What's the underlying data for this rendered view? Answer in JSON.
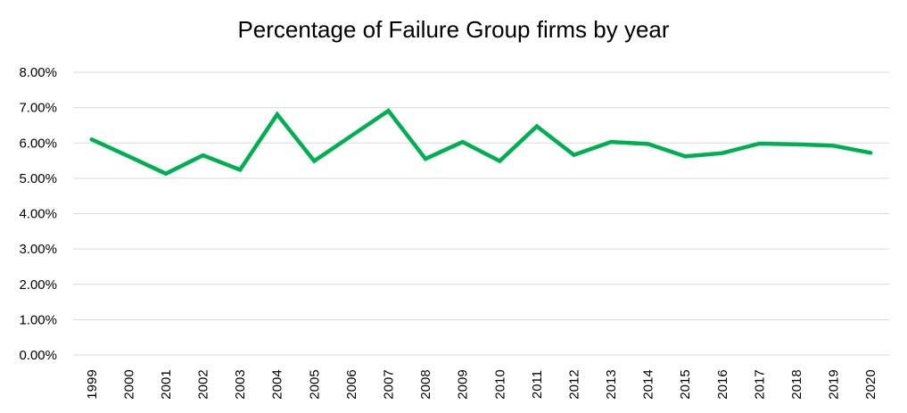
{
  "chart_data": {
    "type": "line",
    "title": "Percentage of Failure Group firms by year",
    "xlabel": "",
    "ylabel": "",
    "categories": [
      "1999",
      "2000",
      "2001",
      "2002",
      "2003",
      "2004",
      "2005",
      "2006",
      "2007",
      "2008",
      "2009",
      "2010",
      "2011",
      "2012",
      "2013",
      "2014",
      "2015",
      "2016",
      "2017",
      "2018",
      "2019",
      "2020"
    ],
    "series": [
      {
        "values": [
          6.1,
          5.62,
          5.13,
          5.65,
          5.24,
          6.81,
          5.49,
          6.2,
          6.91,
          5.55,
          6.03,
          5.49,
          6.47,
          5.66,
          6.03,
          5.97,
          5.62,
          5.71,
          5.98,
          5.96,
          5.92,
          5.72
        ],
        "color": "#00B050"
      }
    ],
    "ylim": [
      0,
      8
    ],
    "yticks": [
      "0.00%",
      "1.00%",
      "2.00%",
      "3.00%",
      "4.00%",
      "5.00%",
      "6.00%",
      "7.00%",
      "8.00%"
    ],
    "grid": true,
    "gridColor": "#d9d9d9",
    "legend": "none"
  }
}
